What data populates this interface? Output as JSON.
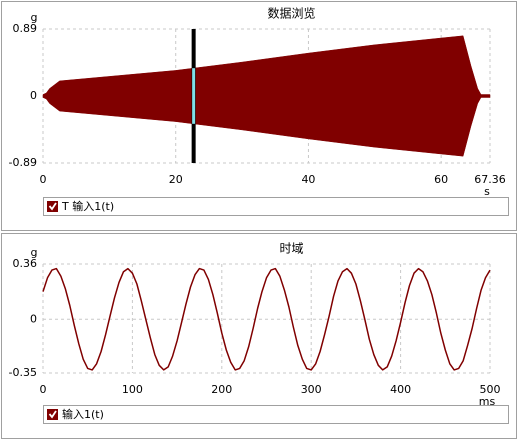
{
  "chart_data": [
    {
      "type": "area",
      "title": "数据浏览",
      "ylabel": "g",
      "xlabel": "s",
      "xlim": [
        0,
        67.36
      ],
      "xticks": [
        0,
        20,
        40,
        60,
        67.36
      ],
      "ylim": [
        -0.89,
        0.89
      ],
      "yticks": [
        0.89,
        0,
        -0.89
      ],
      "grid": true,
      "cursor": 22.7,
      "series": [
        {
          "name": "T 输入1(t)",
          "color": "#800000",
          "x": [
            0,
            0.5,
            1,
            2.5,
            10,
            20,
            30,
            40,
            50,
            60,
            63.3,
            64.5,
            65.5,
            66,
            67.36
          ],
          "values": [
            0.02,
            0.04,
            0.1,
            0.2,
            0.26,
            0.34,
            0.45,
            0.57,
            0.68,
            0.77,
            0.8,
            0.4,
            0.1,
            0.02,
            0.02
          ]
        }
      ]
    },
    {
      "type": "line",
      "title": "时域",
      "ylabel": "g",
      "xlabel": "ms",
      "xlim": [
        0,
        500
      ],
      "xticks": [
        0,
        100,
        200,
        300,
        400,
        500
      ],
      "ylim": [
        -0.35,
        0.36
      ],
      "yticks": [
        0.36,
        0,
        -0.35
      ],
      "grid": true,
      "series": [
        {
          "name": "输入1(t)",
          "color": "#800000",
          "x": [
            0,
            5,
            10,
            15,
            20,
            25,
            30,
            35,
            40,
            45,
            50,
            55,
            60,
            65,
            70,
            75,
            80,
            85,
            90,
            95,
            100,
            105,
            110,
            115,
            120,
            125,
            130,
            135,
            140,
            145,
            150,
            155,
            160,
            165,
            170,
            175,
            180,
            185,
            190,
            195,
            200,
            205,
            210,
            215,
            220,
            225,
            230,
            235,
            240,
            245,
            250,
            255,
            260,
            265,
            270,
            275,
            280,
            285,
            290,
            295,
            300,
            305,
            310,
            315,
            320,
            325,
            330,
            335,
            340,
            345,
            350,
            355,
            360,
            365,
            370,
            375,
            380,
            385,
            390,
            395,
            400,
            405,
            410,
            415,
            420,
            425,
            430,
            435,
            440,
            445,
            450,
            455,
            460,
            465,
            470,
            475,
            480,
            485,
            490,
            495,
            500
          ],
          "values": [
            0.18,
            0.27,
            0.32,
            0.33,
            0.28,
            0.2,
            0.09,
            -0.04,
            -0.16,
            -0.26,
            -0.32,
            -0.33,
            -0.29,
            -0.21,
            -0.1,
            0.02,
            0.14,
            0.24,
            0.31,
            0.33,
            0.3,
            0.23,
            0.12,
            0,
            -0.12,
            -0.23,
            -0.3,
            -0.33,
            -0.31,
            -0.24,
            -0.14,
            -0.02,
            0.1,
            0.21,
            0.29,
            0.33,
            0.32,
            0.26,
            0.16,
            0.04,
            -0.09,
            -0.2,
            -0.28,
            -0.33,
            -0.32,
            -0.27,
            -0.18,
            -0.06,
            0.07,
            0.18,
            0.27,
            0.32,
            0.33,
            0.28,
            0.19,
            0.08,
            -0.05,
            -0.17,
            -0.26,
            -0.32,
            -0.33,
            -0.29,
            -0.21,
            -0.1,
            0.02,
            0.15,
            0.25,
            0.31,
            0.33,
            0.3,
            0.23,
            0.12,
            0,
            -0.13,
            -0.23,
            -0.3,
            -0.33,
            -0.31,
            -0.24,
            -0.14,
            -0.02,
            0.11,
            0.22,
            0.3,
            0.33,
            0.31,
            0.25,
            0.16,
            0.04,
            -0.09,
            -0.2,
            -0.29,
            -0.33,
            -0.32,
            -0.27,
            -0.17,
            -0.06,
            0.07,
            0.19,
            0.27,
            0.32
          ]
        }
      ]
    }
  ]
}
